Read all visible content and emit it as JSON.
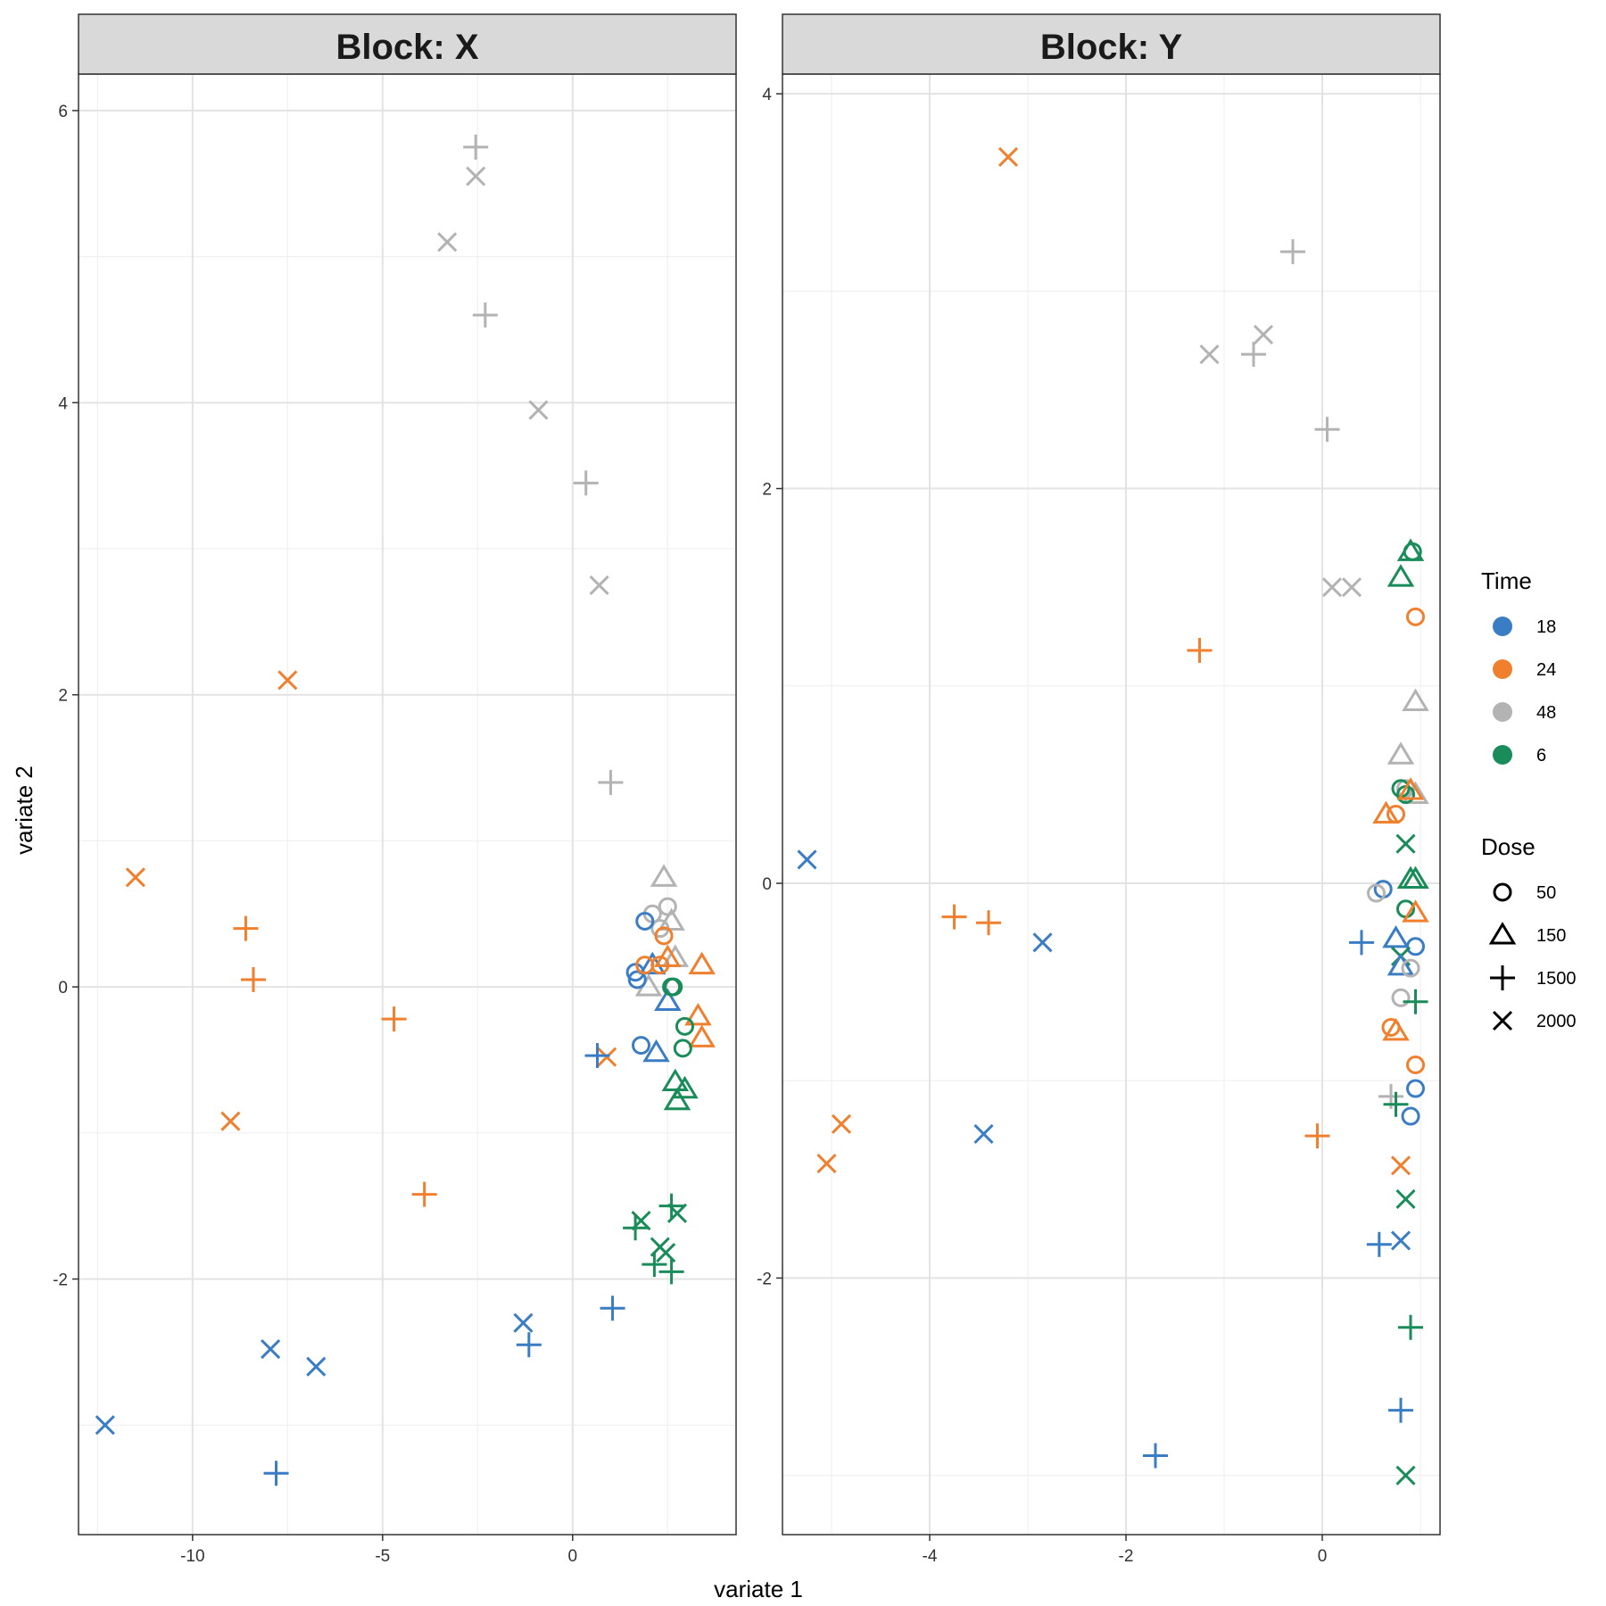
{
  "chart_data": {
    "type": "scatter",
    "xlabel": "variate 1",
    "ylabel": "variate 2",
    "colors": {
      "18": "#3a7dc4",
      "24": "#f07f2e",
      "48": "#b3b3b3",
      "6": "#1a8c5a"
    },
    "legend": {
      "placement": "right",
      "color_title": "Time",
      "color_entries": [
        "18",
        "24",
        "48",
        "6"
      ],
      "shape_title": "Dose",
      "shape_entries": [
        "50",
        "150",
        "1500",
        "2000"
      ],
      "shape_icons": [
        "circle-icon",
        "triangle-icon",
        "plus-icon",
        "cross-icon"
      ]
    },
    "grid": true,
    "panels": [
      {
        "title": "Block: X",
        "xlim": [
          -13.0,
          4.3
        ],
        "ylim": [
          -3.75,
          6.25
        ],
        "xticks": [
          -10,
          -5,
          0
        ],
        "yticks": [
          -2,
          0,
          2,
          4,
          6
        ],
        "points": [
          {
            "x": 2.4,
            "y": 0.75,
            "time": "48",
            "dose": "150"
          },
          {
            "x": 2.6,
            "y": 0.45,
            "time": "48",
            "dose": "150"
          },
          {
            "x": 2.7,
            "y": 0.2,
            "time": "48",
            "dose": "150"
          },
          {
            "x": 2.0,
            "y": 0.0,
            "time": "48",
            "dose": "150"
          },
          {
            "x": 2.1,
            "y": 0.5,
            "time": "48",
            "dose": "50"
          },
          {
            "x": 2.5,
            "y": 0.55,
            "time": "48",
            "dose": "50"
          },
          {
            "x": 2.3,
            "y": 0.4,
            "time": "48",
            "dose": "50"
          },
          {
            "x": 1.9,
            "y": 0.45,
            "time": "18",
            "dose": "50"
          },
          {
            "x": 1.7,
            "y": 0.05,
            "time": "18",
            "dose": "50"
          },
          {
            "x": 1.65,
            "y": 0.1,
            "time": "18",
            "dose": "50"
          },
          {
            "x": 1.8,
            "y": -0.4,
            "time": "18",
            "dose": "50"
          },
          {
            "x": 2.1,
            "y": 0.15,
            "time": "18",
            "dose": "150"
          },
          {
            "x": 2.5,
            "y": -0.1,
            "time": "18",
            "dose": "150"
          },
          {
            "x": 2.2,
            "y": -0.45,
            "time": "18",
            "dose": "150"
          },
          {
            "x": 1.9,
            "y": 0.15,
            "time": "24",
            "dose": "50"
          },
          {
            "x": 2.4,
            "y": 0.35,
            "time": "24",
            "dose": "50"
          },
          {
            "x": 2.3,
            "y": 0.15,
            "time": "24",
            "dose": "50"
          },
          {
            "x": 2.5,
            "y": 0.2,
            "time": "24",
            "dose": "150"
          },
          {
            "x": 3.4,
            "y": 0.15,
            "time": "24",
            "dose": "150"
          },
          {
            "x": 3.3,
            "y": -0.2,
            "time": "24",
            "dose": "150"
          },
          {
            "x": 3.4,
            "y": -0.35,
            "time": "24",
            "dose": "150"
          },
          {
            "x": 2.6,
            "y": 0.0,
            "time": "6",
            "dose": "50"
          },
          {
            "x": 2.65,
            "y": 0.0,
            "time": "6",
            "dose": "50"
          },
          {
            "x": 2.95,
            "y": -0.27,
            "time": "6",
            "dose": "50"
          },
          {
            "x": 2.9,
            "y": -0.42,
            "time": "6",
            "dose": "50"
          },
          {
            "x": 2.7,
            "y": -0.65,
            "time": "6",
            "dose": "150"
          },
          {
            "x": 2.95,
            "y": -0.7,
            "time": "6",
            "dose": "150"
          },
          {
            "x": 2.75,
            "y": -0.78,
            "time": "6",
            "dose": "150"
          },
          {
            "x": -2.55,
            "y": 5.75,
            "time": "48",
            "dose": "1500"
          },
          {
            "x": -2.55,
            "y": 5.55,
            "time": "48",
            "dose": "2000"
          },
          {
            "x": -3.3,
            "y": 5.1,
            "time": "48",
            "dose": "2000"
          },
          {
            "x": -2.3,
            "y": 4.6,
            "time": "48",
            "dose": "1500"
          },
          {
            "x": -0.9,
            "y": 3.95,
            "time": "48",
            "dose": "2000"
          },
          {
            "x": 0.35,
            "y": 3.45,
            "time": "48",
            "dose": "1500"
          },
          {
            "x": 0.7,
            "y": 2.75,
            "time": "48",
            "dose": "2000"
          },
          {
            "x": 1.0,
            "y": 1.4,
            "time": "48",
            "dose": "1500"
          },
          {
            "x": -7.5,
            "y": 2.1,
            "time": "24",
            "dose": "2000"
          },
          {
            "x": -11.5,
            "y": 0.75,
            "time": "24",
            "dose": "2000"
          },
          {
            "x": -8.6,
            "y": 0.4,
            "time": "24",
            "dose": "1500"
          },
          {
            "x": -8.4,
            "y": 0.05,
            "time": "24",
            "dose": "1500"
          },
          {
            "x": -4.7,
            "y": -0.22,
            "time": "24",
            "dose": "1500"
          },
          {
            "x": -9.0,
            "y": -0.92,
            "time": "24",
            "dose": "2000"
          },
          {
            "x": -3.9,
            "y": -1.42,
            "time": "24",
            "dose": "1500"
          },
          {
            "x": 0.9,
            "y": -0.48,
            "time": "24",
            "dose": "2000"
          },
          {
            "x": 0.65,
            "y": -0.47,
            "time": "18",
            "dose": "1500"
          },
          {
            "x": 1.05,
            "y": -2.2,
            "time": "18",
            "dose": "1500"
          },
          {
            "x": -1.3,
            "y": -2.3,
            "time": "18",
            "dose": "2000"
          },
          {
            "x": -1.15,
            "y": -2.45,
            "time": "18",
            "dose": "1500"
          },
          {
            "x": -7.95,
            "y": -2.48,
            "time": "18",
            "dose": "2000"
          },
          {
            "x": -6.75,
            "y": -2.6,
            "time": "18",
            "dose": "2000"
          },
          {
            "x": -12.3,
            "y": -3.0,
            "time": "18",
            "dose": "2000"
          },
          {
            "x": -7.8,
            "y": -3.33,
            "time": "18",
            "dose": "1500"
          },
          {
            "x": 2.6,
            "y": -1.5,
            "time": "6",
            "dose": "1500"
          },
          {
            "x": 2.75,
            "y": -1.55,
            "time": "6",
            "dose": "2000"
          },
          {
            "x": 1.8,
            "y": -1.6,
            "time": "6",
            "dose": "2000"
          },
          {
            "x": 1.65,
            "y": -1.65,
            "time": "6",
            "dose": "1500"
          },
          {
            "x": 2.3,
            "y": -1.78,
            "time": "6",
            "dose": "2000"
          },
          {
            "x": 2.45,
            "y": -1.82,
            "time": "6",
            "dose": "2000"
          },
          {
            "x": 2.15,
            "y": -1.9,
            "time": "6",
            "dose": "1500"
          },
          {
            "x": 2.6,
            "y": -1.95,
            "time": "6",
            "dose": "1500"
          }
        ]
      },
      {
        "title": "Block: Y",
        "xlim": [
          -5.5,
          1.2
        ],
        "ylim": [
          -3.3,
          4.1
        ],
        "xticks": [
          -4,
          -2,
          0
        ],
        "yticks": [
          -2,
          0,
          2,
          4
        ],
        "points": [
          {
            "x": -3.2,
            "y": 3.68,
            "time": "24",
            "dose": "2000"
          },
          {
            "x": -0.3,
            "y": 3.2,
            "time": "48",
            "dose": "1500"
          },
          {
            "x": -0.6,
            "y": 2.78,
            "time": "48",
            "dose": "2000"
          },
          {
            "x": -1.15,
            "y": 2.68,
            "time": "48",
            "dose": "2000"
          },
          {
            "x": -0.7,
            "y": 2.68,
            "time": "48",
            "dose": "1500"
          },
          {
            "x": 0.05,
            "y": 2.3,
            "time": "48",
            "dose": "1500"
          },
          {
            "x": 0.1,
            "y": 1.5,
            "time": "48",
            "dose": "2000"
          },
          {
            "x": 0.3,
            "y": 1.5,
            "time": "48",
            "dose": "2000"
          },
          {
            "x": -1.25,
            "y": 1.18,
            "time": "24",
            "dose": "1500"
          },
          {
            "x": 0.9,
            "y": 1.68,
            "time": "6",
            "dose": "150"
          },
          {
            "x": 0.92,
            "y": 1.68,
            "time": "6",
            "dose": "50"
          },
          {
            "x": 0.8,
            "y": 1.55,
            "time": "6",
            "dose": "150"
          },
          {
            "x": 0.95,
            "y": 1.35,
            "time": "24",
            "dose": "50"
          },
          {
            "x": 0.95,
            "y": 0.92,
            "time": "48",
            "dose": "150"
          },
          {
            "x": 0.8,
            "y": 0.65,
            "time": "48",
            "dose": "150"
          },
          {
            "x": 0.85,
            "y": 0.48,
            "time": "48",
            "dose": "50"
          },
          {
            "x": 0.95,
            "y": 0.45,
            "time": "48",
            "dose": "150"
          },
          {
            "x": 0.85,
            "y": 0.45,
            "time": "6",
            "dose": "50"
          },
          {
            "x": 0.8,
            "y": 0.48,
            "time": "6",
            "dose": "50"
          },
          {
            "x": 0.9,
            "y": 0.47,
            "time": "24",
            "dose": "150"
          },
          {
            "x": 0.65,
            "y": 0.35,
            "time": "24",
            "dose": "150"
          },
          {
            "x": 0.75,
            "y": 0.35,
            "time": "24",
            "dose": "50"
          },
          {
            "x": 0.85,
            "y": 0.2,
            "time": "6",
            "dose": "2000"
          },
          {
            "x": -5.25,
            "y": 0.12,
            "time": "18",
            "dose": "2000"
          },
          {
            "x": 0.9,
            "y": 0.02,
            "time": "6",
            "dose": "150"
          },
          {
            "x": 0.95,
            "y": 0.02,
            "time": "6",
            "dose": "150"
          },
          {
            "x": 0.62,
            "y": -0.03,
            "time": "18",
            "dose": "50"
          },
          {
            "x": 0.55,
            "y": -0.05,
            "time": "48",
            "dose": "50"
          },
          {
            "x": 0.85,
            "y": -0.13,
            "time": "6",
            "dose": "50"
          },
          {
            "x": 0.95,
            "y": -0.15,
            "time": "24",
            "dose": "150"
          },
          {
            "x": -3.75,
            "y": -0.17,
            "time": "24",
            "dose": "1500"
          },
          {
            "x": -3.4,
            "y": -0.2,
            "time": "24",
            "dose": "1500"
          },
          {
            "x": -2.85,
            "y": -0.3,
            "time": "18",
            "dose": "2000"
          },
          {
            "x": 0.4,
            "y": -0.3,
            "time": "18",
            "dose": "1500"
          },
          {
            "x": 0.75,
            "y": -0.28,
            "time": "18",
            "dose": "150"
          },
          {
            "x": 0.95,
            "y": -0.32,
            "time": "18",
            "dose": "50"
          },
          {
            "x": 0.8,
            "y": -0.37,
            "time": "6",
            "dose": "2000"
          },
          {
            "x": 0.8,
            "y": -0.42,
            "time": "18",
            "dose": "150"
          },
          {
            "x": 0.9,
            "y": -0.43,
            "time": "48",
            "dose": "50"
          },
          {
            "x": 0.8,
            "y": -0.58,
            "time": "48",
            "dose": "50"
          },
          {
            "x": 0.95,
            "y": -0.6,
            "time": "6",
            "dose": "1500"
          },
          {
            "x": 0.7,
            "y": -0.73,
            "time": "24",
            "dose": "50"
          },
          {
            "x": 0.75,
            "y": -0.75,
            "time": "24",
            "dose": "150"
          },
          {
            "x": 0.95,
            "y": -0.92,
            "time": "24",
            "dose": "50"
          },
          {
            "x": 0.95,
            "y": -1.04,
            "time": "18",
            "dose": "50"
          },
          {
            "x": 0.7,
            "y": -1.08,
            "time": "48",
            "dose": "1500"
          },
          {
            "x": 0.75,
            "y": -1.12,
            "time": "6",
            "dose": "1500"
          },
          {
            "x": 0.9,
            "y": -1.18,
            "time": "18",
            "dose": "50"
          },
          {
            "x": -4.9,
            "y": -1.22,
            "time": "24",
            "dose": "2000"
          },
          {
            "x": -3.45,
            "y": -1.27,
            "time": "18",
            "dose": "2000"
          },
          {
            "x": -0.05,
            "y": -1.28,
            "time": "24",
            "dose": "1500"
          },
          {
            "x": -5.05,
            "y": -1.42,
            "time": "24",
            "dose": "2000"
          },
          {
            "x": 0.8,
            "y": -1.43,
            "time": "24",
            "dose": "2000"
          },
          {
            "x": 0.85,
            "y": -1.6,
            "time": "6",
            "dose": "2000"
          },
          {
            "x": 0.58,
            "y": -1.83,
            "time": "18",
            "dose": "1500"
          },
          {
            "x": 0.8,
            "y": -1.81,
            "time": "18",
            "dose": "2000"
          },
          {
            "x": 0.9,
            "y": -2.25,
            "time": "6",
            "dose": "1500"
          },
          {
            "x": 0.8,
            "y": -2.67,
            "time": "18",
            "dose": "1500"
          },
          {
            "x": -1.7,
            "y": -2.9,
            "time": "18",
            "dose": "1500"
          },
          {
            "x": 0.85,
            "y": -3.0,
            "time": "6",
            "dose": "2000"
          }
        ]
      }
    ]
  }
}
